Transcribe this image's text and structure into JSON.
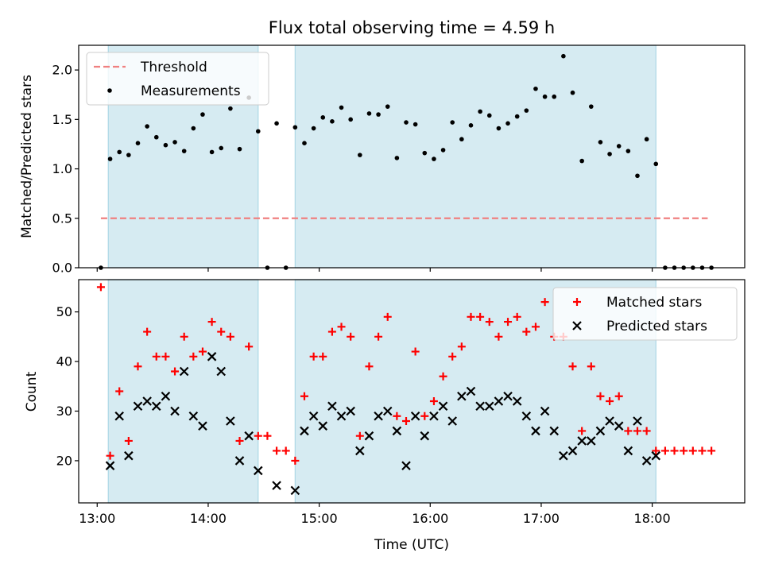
{
  "chart_data": [
    {
      "type": "scatter",
      "title": "Flux total observing time = 4.59 h",
      "xlabel": "",
      "ylabel": "Matched/Predicted stars",
      "xlim": [
        "12:50",
        "18:50"
      ],
      "ylim": [
        0,
        2.25
      ],
      "yticks": [
        0.0,
        0.5,
        1.0,
        1.5,
        2.0
      ],
      "ytick_labels": [
        "0.0",
        "0.5",
        "1.0",
        "1.5",
        "2.0"
      ],
      "shaded_intervals": [
        [
          "13:06",
          "14:27"
        ],
        [
          "14:47",
          "18:02"
        ]
      ],
      "shade_color": "#add8e6",
      "legend_position": "upper left",
      "threshold": {
        "name": "Threshold",
        "y": 0.5,
        "x_range": [
          "13:02",
          "18:30"
        ],
        "color": "#f08080",
        "style": "dashed"
      },
      "series": [
        {
          "name": "Measurements",
          "color": "#000000",
          "marker": "dot",
          "points": [
            [
              "13:02",
              0.0
            ],
            [
              "13:07",
              1.1
            ],
            [
              "13:12",
              1.17
            ],
            [
              "13:17",
              1.14
            ],
            [
              "13:22",
              1.26
            ],
            [
              "13:27",
              1.43
            ],
            [
              "13:32",
              1.32
            ],
            [
              "13:37",
              1.24
            ],
            [
              "13:42",
              1.27
            ],
            [
              "13:47",
              1.18
            ],
            [
              "13:52",
              1.41
            ],
            [
              "13:57",
              1.55
            ],
            [
              "14:02",
              1.17
            ],
            [
              "14:07",
              1.21
            ],
            [
              "14:12",
              1.61
            ],
            [
              "14:17",
              1.2
            ],
            [
              "14:22",
              1.72
            ],
            [
              "14:27",
              1.38
            ],
            [
              "14:32",
              0.0
            ],
            [
              "14:37",
              1.46
            ],
            [
              "14:42",
              0.0
            ],
            [
              "14:47",
              1.42
            ],
            [
              "14:52",
              1.26
            ],
            [
              "14:57",
              1.41
            ],
            [
              "15:02",
              1.52
            ],
            [
              "15:07",
              1.48
            ],
            [
              "15:12",
              1.62
            ],
            [
              "15:17",
              1.5
            ],
            [
              "15:22",
              1.14
            ],
            [
              "15:27",
              1.56
            ],
            [
              "15:32",
              1.55
            ],
            [
              "15:37",
              1.63
            ],
            [
              "15:42",
              1.11
            ],
            [
              "15:47",
              1.47
            ],
            [
              "15:52",
              1.45
            ],
            [
              "15:57",
              1.16
            ],
            [
              "16:02",
              1.1
            ],
            [
              "16:07",
              1.19
            ],
            [
              "16:12",
              1.47
            ],
            [
              "16:17",
              1.3
            ],
            [
              "16:22",
              1.44
            ],
            [
              "16:27",
              1.58
            ],
            [
              "16:32",
              1.54
            ],
            [
              "16:37",
              1.41
            ],
            [
              "16:42",
              1.46
            ],
            [
              "16:47",
              1.53
            ],
            [
              "16:52",
              1.59
            ],
            [
              "16:57",
              1.81
            ],
            [
              "17:02",
              1.73
            ],
            [
              "17:07",
              1.73
            ],
            [
              "17:12",
              2.14
            ],
            [
              "17:17",
              1.77
            ],
            [
              "17:22",
              1.08
            ],
            [
              "17:27",
              1.63
            ],
            [
              "17:32",
              1.27
            ],
            [
              "17:37",
              1.15
            ],
            [
              "17:42",
              1.23
            ],
            [
              "17:47",
              1.18
            ],
            [
              "17:52",
              0.93
            ],
            [
              "17:57",
              1.3
            ],
            [
              "18:02",
              1.05
            ],
            [
              "18:07",
              0.0
            ],
            [
              "18:12",
              0.0
            ],
            [
              "18:17",
              0.0
            ],
            [
              "18:22",
              0.0
            ],
            [
              "18:27",
              0.0
            ],
            [
              "18:32",
              0.0
            ]
          ]
        }
      ]
    },
    {
      "type": "scatter",
      "title": "",
      "xlabel": "Time (UTC)",
      "ylabel": "Count",
      "xlim": [
        "12:50",
        "18:50"
      ],
      "ylim": [
        11.5,
        56.5
      ],
      "xticks": [
        "13:00",
        "14:00",
        "15:00",
        "16:00",
        "17:00",
        "18:00"
      ],
      "xtick_labels": [
        "13:00",
        "14:00",
        "15:00",
        "16:00",
        "17:00",
        "18:00"
      ],
      "yticks": [
        20,
        30,
        40,
        50
      ],
      "ytick_labels": [
        "20",
        "30",
        "40",
        "50"
      ],
      "shaded_intervals": [
        [
          "13:06",
          "14:27"
        ],
        [
          "14:47",
          "18:02"
        ]
      ],
      "shade_color": "#add8e6",
      "legend_position": "upper right",
      "series": [
        {
          "name": "Matched stars",
          "color": "#ff0000",
          "marker": "plus",
          "points": [
            [
              "13:02",
              55
            ],
            [
              "13:07",
              21
            ],
            [
              "13:12",
              34
            ],
            [
              "13:17",
              24
            ],
            [
              "13:22",
              39
            ],
            [
              "13:27",
              46
            ],
            [
              "13:32",
              41
            ],
            [
              "13:37",
              41
            ],
            [
              "13:42",
              38
            ],
            [
              "13:47",
              45
            ],
            [
              "13:52",
              41
            ],
            [
              "13:57",
              42
            ],
            [
              "14:02",
              48
            ],
            [
              "14:07",
              46
            ],
            [
              "14:12",
              45
            ],
            [
              "14:17",
              24
            ],
            [
              "14:22",
              43
            ],
            [
              "14:27",
              25
            ],
            [
              "14:32",
              25
            ],
            [
              "14:37",
              22
            ],
            [
              "14:42",
              22
            ],
            [
              "14:47",
              20
            ],
            [
              "14:52",
              33
            ],
            [
              "14:57",
              41
            ],
            [
              "15:02",
              41
            ],
            [
              "15:07",
              46
            ],
            [
              "15:12",
              47
            ],
            [
              "15:17",
              45
            ],
            [
              "15:22",
              25
            ],
            [
              "15:27",
              39
            ],
            [
              "15:32",
              45
            ],
            [
              "15:37",
              49
            ],
            [
              "15:42",
              29
            ],
            [
              "15:47",
              28
            ],
            [
              "15:52",
              42
            ],
            [
              "15:57",
              29
            ],
            [
              "16:02",
              32
            ],
            [
              "16:07",
              37
            ],
            [
              "16:12",
              41
            ],
            [
              "16:17",
              43
            ],
            [
              "16:22",
              49
            ],
            [
              "16:27",
              49
            ],
            [
              "16:32",
              48
            ],
            [
              "16:37",
              45
            ],
            [
              "16:42",
              48
            ],
            [
              "16:47",
              49
            ],
            [
              "16:52",
              46
            ],
            [
              "16:57",
              47
            ],
            [
              "17:02",
              52
            ],
            [
              "17:07",
              45
            ],
            [
              "17:12",
              45
            ],
            [
              "17:17",
              39
            ],
            [
              "17:22",
              26
            ],
            [
              "17:27",
              39
            ],
            [
              "17:32",
              33
            ],
            [
              "17:37",
              32
            ],
            [
              "17:42",
              33
            ],
            [
              "17:47",
              26
            ],
            [
              "17:52",
              26
            ],
            [
              "17:57",
              26
            ],
            [
              "18:02",
              22
            ],
            [
              "18:07",
              22
            ],
            [
              "18:12",
              22
            ],
            [
              "18:17",
              22
            ],
            [
              "18:22",
              22
            ],
            [
              "18:27",
              22
            ],
            [
              "18:32",
              22
            ]
          ]
        },
        {
          "name": "Predicted stars",
          "color": "#000000",
          "marker": "x",
          "points": [
            [
              "13:07",
              19
            ],
            [
              "13:12",
              29
            ],
            [
              "13:17",
              21
            ],
            [
              "13:22",
              31
            ],
            [
              "13:27",
              32
            ],
            [
              "13:32",
              31
            ],
            [
              "13:37",
              33
            ],
            [
              "13:42",
              30
            ],
            [
              "13:47",
              38
            ],
            [
              "13:52",
              29
            ],
            [
              "13:57",
              27
            ],
            [
              "14:02",
              41
            ],
            [
              "14:07",
              38
            ],
            [
              "14:12",
              28
            ],
            [
              "14:17",
              20
            ],
            [
              "14:22",
              25
            ],
            [
              "14:27",
              18
            ],
            [
              "14:37",
              15
            ],
            [
              "14:47",
              14
            ],
            [
              "14:52",
              26
            ],
            [
              "14:57",
              29
            ],
            [
              "15:02",
              27
            ],
            [
              "15:07",
              31
            ],
            [
              "15:12",
              29
            ],
            [
              "15:17",
              30
            ],
            [
              "15:22",
              22
            ],
            [
              "15:27",
              25
            ],
            [
              "15:32",
              29
            ],
            [
              "15:37",
              30
            ],
            [
              "15:42",
              26
            ],
            [
              "15:47",
              19
            ],
            [
              "15:52",
              29
            ],
            [
              "15:57",
              25
            ],
            [
              "16:02",
              29
            ],
            [
              "16:07",
              31
            ],
            [
              "16:12",
              28
            ],
            [
              "16:17",
              33
            ],
            [
              "16:22",
              34
            ],
            [
              "16:27",
              31
            ],
            [
              "16:32",
              31
            ],
            [
              "16:37",
              32
            ],
            [
              "16:42",
              33
            ],
            [
              "16:47",
              32
            ],
            [
              "16:52",
              29
            ],
            [
              "16:57",
              26
            ],
            [
              "17:02",
              30
            ],
            [
              "17:07",
              26
            ],
            [
              "17:12",
              21
            ],
            [
              "17:17",
              22
            ],
            [
              "17:22",
              24
            ],
            [
              "17:27",
              24
            ],
            [
              "17:32",
              26
            ],
            [
              "17:37",
              28
            ],
            [
              "17:42",
              27
            ],
            [
              "17:47",
              22
            ],
            [
              "17:52",
              28
            ],
            [
              "17:57",
              20
            ],
            [
              "18:02",
              21
            ]
          ]
        }
      ]
    }
  ]
}
